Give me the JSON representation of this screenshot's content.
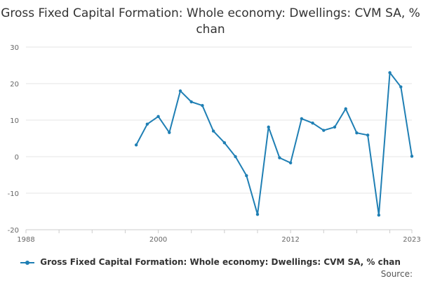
{
  "chart_data": {
    "type": "line",
    "title": "Gross Fixed Capital Formation: Whole economy: Dwellings: CVM SA, % chan",
    "xlabel": "",
    "ylabel": "",
    "xlim": [
      1988,
      2023
    ],
    "ylim": [
      -20,
      30
    ],
    "x_ticks": [
      1988,
      2000,
      2012,
      2023
    ],
    "y_ticks": [
      30,
      20,
      10,
      0,
      -10,
      -20
    ],
    "grid": true,
    "legend_position": "bottom",
    "color": "#1f7fb4",
    "series": [
      {
        "name": "Gross Fixed Capital Formation: Whole economy: Dwellings: CVM SA, % chan",
        "x": [
          1998,
          1999,
          2000,
          2001,
          2002,
          2003,
          2004,
          2005,
          2006,
          2007,
          2008,
          2009,
          2010,
          2011,
          2012,
          2013,
          2014,
          2015,
          2016,
          2017,
          2018,
          2019,
          2020,
          2021,
          2022,
          2023
        ],
        "values": [
          3.2,
          8.9,
          11.0,
          6.6,
          18.0,
          15.0,
          14.0,
          7.0,
          3.8,
          0.0,
          -5.2,
          -15.8,
          8.1,
          -0.3,
          -1.7,
          10.4,
          9.2,
          7.2,
          8.1,
          13.1,
          6.5,
          5.9,
          -16.0,
          23.0,
          19.1,
          0.1
        ]
      }
    ]
  },
  "source_label": "Source:"
}
